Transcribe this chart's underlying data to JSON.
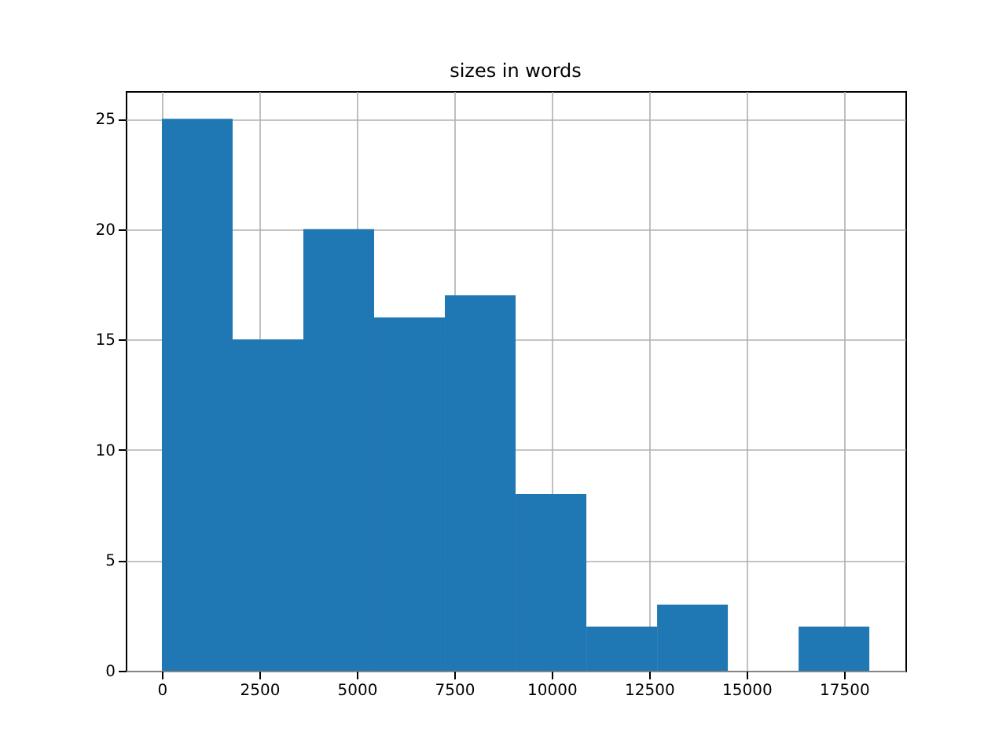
{
  "chart_data": {
    "type": "histogram",
    "title": "sizes in words",
    "bins": [
      0,
      1815,
      3630,
      5445,
      7260,
      9075,
      10890,
      12705,
      14520,
      16335,
      18150
    ],
    "values": [
      25,
      15,
      20,
      16,
      17,
      8,
      2,
      3,
      0,
      2
    ],
    "color": "#1f77b4",
    "xlim": [
      -927,
      19075
    ],
    "xticks": [
      0,
      2500,
      5000,
      7500,
      10000,
      12500,
      15000,
      17500
    ],
    "ylim": [
      0,
      26.25
    ],
    "yticks": [
      0,
      5,
      10,
      15,
      20,
      25
    ],
    "grid": true
  }
}
